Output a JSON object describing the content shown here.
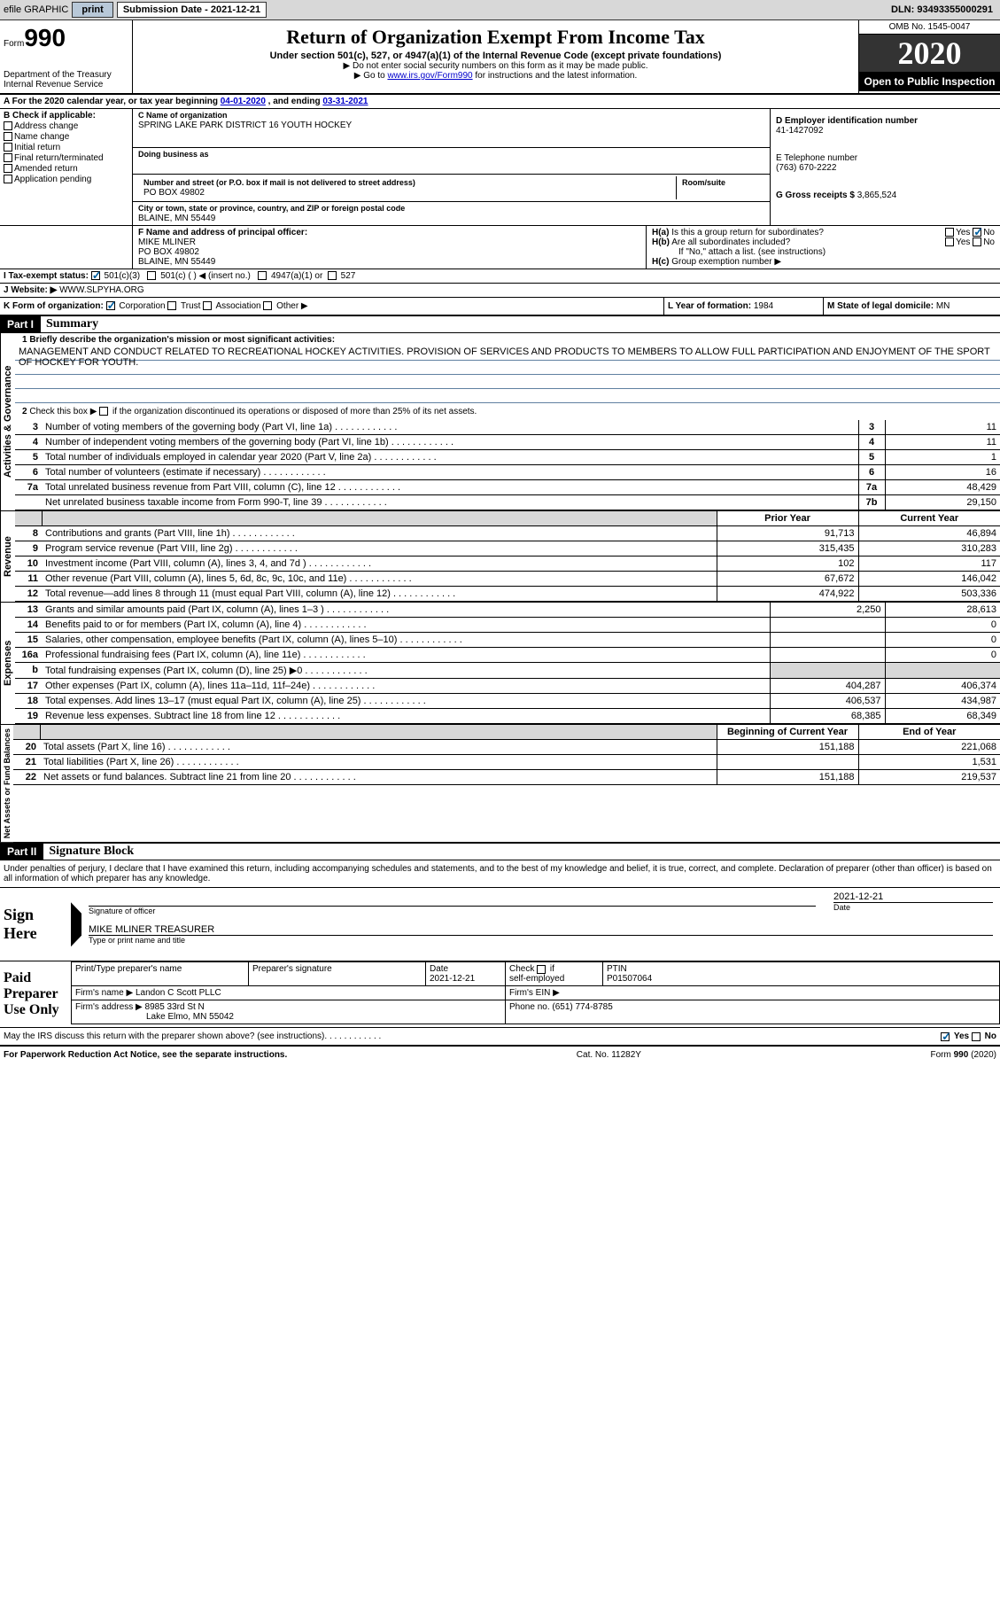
{
  "meta": {
    "efile_label": "efile GRAPHIC",
    "print_btn": "print",
    "submission_date_label": "Submission Date - ",
    "submission_date": "2021-12-21",
    "dln_label": "DLN: ",
    "dln": "93493355000291",
    "form_prefix": "Form",
    "form_number": "990",
    "form_title": "Return of Organization Exempt From Income Tax",
    "form_subtitle": "Under section 501(c), 527, or 4947(a)(1) of the Internal Revenue Code (except private foundations)",
    "note1": "▶ Do not enter social security numbers on this form as it may be made public.",
    "note2_pre": "▶ Go to ",
    "note2_link": "www.irs.gov/Form990",
    "note2_post": " for instructions and the latest information.",
    "dept": "Department of the Treasury\nInternal Revenue Service",
    "omb": "OMB No. 1545-0047",
    "tax_year": "2020",
    "open_inspection": "Open to Public Inspection",
    "period_line_pre": "A For the 2020 calendar year, or tax year beginning ",
    "period_start": "04-01-2020",
    "period_mid": "   , and ending ",
    "period_end": "03-31-2021"
  },
  "section_b": {
    "header": "B Check if applicable:",
    "items": [
      "Address change",
      "Name change",
      "Initial return",
      "Final return/terminated",
      "Amended return",
      "Application pending"
    ],
    "c_label": "C Name of organization",
    "c_name": "SPRING LAKE PARK DISTRICT 16 YOUTH HOCKEY",
    "dba_label": "Doing business as",
    "addr_label": "Number and street (or P.O. box if mail is not delivered to street address)",
    "addr": "PO BOX 49802",
    "room_label": "Room/suite",
    "city_label": "City or town, state or province, country, and ZIP or foreign postal code",
    "city": "BLAINE, MN  55449",
    "d_label": "D Employer identification number",
    "d_val": "41-1427092",
    "e_label": "E Telephone number",
    "e_val": "(763) 670-2222",
    "g_label": "G Gross receipts $ ",
    "g_val": "3,865,524",
    "f_label": "F  Name and address of principal officer:",
    "f_name": "MIKE MLINER",
    "f_addr1": "PO BOX 49802",
    "f_addr2": "BLAINE, MN  55449",
    "ha_label": "H(a)  Is this a group return for subordinates?",
    "hb_label": "H(b)  Are all subordinates included?",
    "hb_note": "If \"No,\" attach a list. (see instructions)",
    "hc_label": "H(c)  Group exemption number ▶",
    "yes": "Yes",
    "no": "No"
  },
  "section_i": {
    "label": "I     Tax-exempt status:",
    "opts": [
      "501(c)(3)",
      "501(c) (   ) ◀ (insert no.)",
      "4947(a)(1) or",
      "527"
    ]
  },
  "section_j": {
    "label": "J    Website: ▶",
    "val": "WWW.SLPYHA.ORG"
  },
  "section_k": {
    "label": "K Form of organization:",
    "opts": [
      "Corporation",
      "Trust",
      "Association",
      "Other ▶"
    ],
    "l_label": "L Year of formation: ",
    "l_val": "1984",
    "m_label": "M State of legal domicile: ",
    "m_val": "MN"
  },
  "part1": {
    "header": "Part I",
    "title": "Summary",
    "q1_label": "1  Briefly describe the organization's mission or most significant activities:",
    "q1_text": "MANAGEMENT AND CONDUCT RELATED TO RECREATIONAL HOCKEY ACTIVITIES. PROVISION OF SERVICES AND PRODUCTS TO MEMBERS TO ALLOW FULL PARTICIPATION AND ENJOYMENT OF THE SPORT OF HOCKEY FOR YOUTH.",
    "q2_label": "2   Check this box ▶       if the organization discontinued its operations or disposed of more than 25% of its net assets.",
    "tabs": {
      "gov": "Activities & Governance",
      "rev": "Revenue",
      "exp": "Expenses",
      "net": "Net Assets or Fund Balances"
    },
    "gov_rows": [
      {
        "n": "3",
        "t": "Number of voting members of the governing body (Part VI, line 1a)",
        "k": "3",
        "v": "11"
      },
      {
        "n": "4",
        "t": "Number of independent voting members of the governing body (Part VI, line 1b)",
        "k": "4",
        "v": "11"
      },
      {
        "n": "5",
        "t": "Total number of individuals employed in calendar year 2020 (Part V, line 2a)",
        "k": "5",
        "v": "1"
      },
      {
        "n": "6",
        "t": "Total number of volunteers (estimate if necessary)",
        "k": "6",
        "v": "16"
      },
      {
        "n": "7a",
        "t": "Total unrelated business revenue from Part VIII, column (C), line 12",
        "k": "7a",
        "v": "48,429"
      },
      {
        "n": "",
        "t": "Net unrelated business taxable income from Form 990-T, line 39",
        "k": "7b",
        "v": "29,150"
      }
    ],
    "col_headers": {
      "prior": "Prior Year",
      "cur": "Current Year"
    },
    "rev_rows": [
      {
        "n": "8",
        "t": "Contributions and grants (Part VIII, line 1h)",
        "p": "91,713",
        "c": "46,894"
      },
      {
        "n": "9",
        "t": "Program service revenue (Part VIII, line 2g)",
        "p": "315,435",
        "c": "310,283"
      },
      {
        "n": "10",
        "t": "Investment income (Part VIII, column (A), lines 3, 4, and 7d )",
        "p": "102",
        "c": "117"
      },
      {
        "n": "11",
        "t": "Other revenue (Part VIII, column (A), lines 5, 6d, 8c, 9c, 10c, and 11e)",
        "p": "67,672",
        "c": "146,042"
      },
      {
        "n": "12",
        "t": "Total revenue—add lines 8 through 11 (must equal Part VIII, column (A), line 12)",
        "p": "474,922",
        "c": "503,336"
      }
    ],
    "exp_rows": [
      {
        "n": "13",
        "t": "Grants and similar amounts paid (Part IX, column (A), lines 1–3 )",
        "p": "2,250",
        "c": "28,613"
      },
      {
        "n": "14",
        "t": "Benefits paid to or for members (Part IX, column (A), line 4)",
        "p": "",
        "c": "0"
      },
      {
        "n": "15",
        "t": "Salaries, other compensation, employee benefits (Part IX, column (A), lines 5–10)",
        "p": "",
        "c": "0"
      },
      {
        "n": "16a",
        "t": "Professional fundraising fees (Part IX, column (A), line 11e)",
        "p": "",
        "c": "0"
      },
      {
        "n": "b",
        "t": "Total fundraising expenses (Part IX, column (D), line 25) ▶0",
        "p": "SHADE",
        "c": "SHADE"
      },
      {
        "n": "17",
        "t": "Other expenses (Part IX, column (A), lines 11a–11d, 11f–24e)",
        "p": "404,287",
        "c": "406,374"
      },
      {
        "n": "18",
        "t": "Total expenses. Add lines 13–17 (must equal Part IX, column (A), line 25)",
        "p": "406,537",
        "c": "434,987"
      },
      {
        "n": "19",
        "t": "Revenue less expenses. Subtract line 18 from line 12",
        "p": "68,385",
        "c": "68,349"
      }
    ],
    "net_headers": {
      "beg": "Beginning of Current Year",
      "end": "End of Year"
    },
    "net_rows": [
      {
        "n": "20",
        "t": "Total assets (Part X, line 16)",
        "p": "151,188",
        "c": "221,068"
      },
      {
        "n": "21",
        "t": "Total liabilities (Part X, line 26)",
        "p": "",
        "c": "1,531"
      },
      {
        "n": "22",
        "t": "Net assets or fund balances. Subtract line 21 from line 20",
        "p": "151,188",
        "c": "219,537"
      }
    ]
  },
  "part2": {
    "header": "Part II",
    "title": "Signature Block",
    "declaration": "Under penalties of perjury, I declare that I have examined this return, including accompanying schedules and statements, and to the best of my knowledge and belief, it is true, correct, and complete. Declaration of preparer (other than officer) is based on all information of which preparer has any knowledge.",
    "sign_here": "Sign Here",
    "sig_officer_label": "Signature of officer",
    "date_label": "Date",
    "sig_date": "2021-12-21",
    "name_title": "MIKE MLINER  TREASURER",
    "name_title_label": "Type or print name and title",
    "paid_label": "Paid Preparer Use Only",
    "prep_headers": [
      "Print/Type preparer's name",
      "Preparer's signature",
      "Date",
      "Check        if self-employed",
      "PTIN"
    ],
    "prep_date": "2021-12-21",
    "ptin": "P01507064",
    "firm_name_label": "Firm's name    ▶",
    "firm_name": "Landon C Scott PLLC",
    "firm_ein_label": "Firm's EIN ▶",
    "firm_addr_label": "Firm's address ▶",
    "firm_addr1": "8985 33rd St N",
    "firm_addr2": "Lake Elmo, MN  55042",
    "firm_phone_label": "Phone no. ",
    "firm_phone": "(651) 774-8785",
    "discuss": "May the IRS discuss this return with the preparer shown above? (see instructions)"
  },
  "footer": {
    "notice": "For Paperwork Reduction Act Notice, see the separate instructions.",
    "cat": "Cat. No. 11282Y",
    "form": "Form 990 (2020)"
  }
}
